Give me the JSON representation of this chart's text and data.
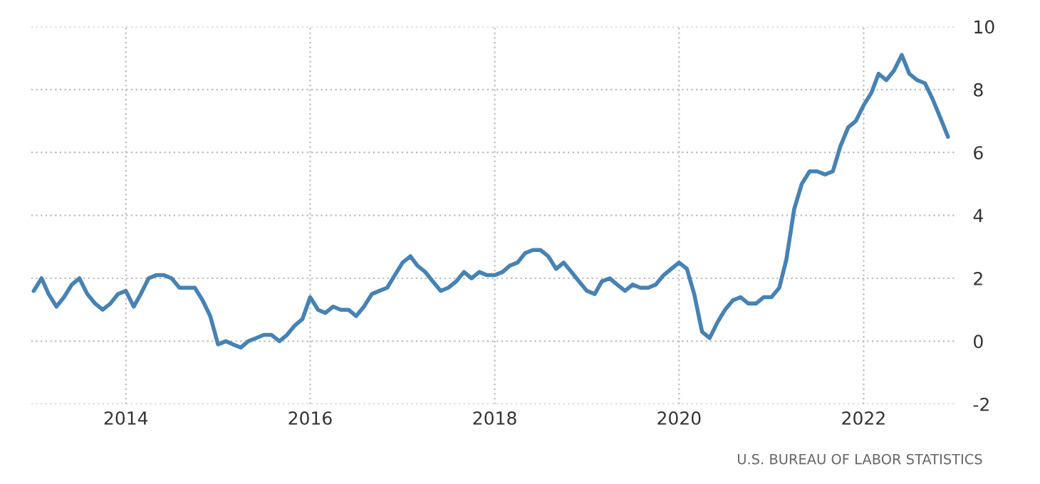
{
  "chart_data": {
    "type": "line",
    "x": [
      "2013-01",
      "2013-02",
      "2013-03",
      "2013-04",
      "2013-05",
      "2013-06",
      "2013-07",
      "2013-08",
      "2013-09",
      "2013-10",
      "2013-11",
      "2013-12",
      "2014-01",
      "2014-02",
      "2014-03",
      "2014-04",
      "2014-05",
      "2014-06",
      "2014-07",
      "2014-08",
      "2014-09",
      "2014-10",
      "2014-11",
      "2014-12",
      "2015-01",
      "2015-02",
      "2015-03",
      "2015-04",
      "2015-05",
      "2015-06",
      "2015-07",
      "2015-08",
      "2015-09",
      "2015-10",
      "2015-11",
      "2015-12",
      "2016-01",
      "2016-02",
      "2016-03",
      "2016-04",
      "2016-05",
      "2016-06",
      "2016-07",
      "2016-08",
      "2016-09",
      "2016-10",
      "2016-11",
      "2016-12",
      "2017-01",
      "2017-02",
      "2017-03",
      "2017-04",
      "2017-05",
      "2017-06",
      "2017-07",
      "2017-08",
      "2017-09",
      "2017-10",
      "2017-11",
      "2017-12",
      "2018-01",
      "2018-02",
      "2018-03",
      "2018-04",
      "2018-05",
      "2018-06",
      "2018-07",
      "2018-08",
      "2018-09",
      "2018-10",
      "2018-11",
      "2018-12",
      "2019-01",
      "2019-02",
      "2019-03",
      "2019-04",
      "2019-05",
      "2019-06",
      "2019-07",
      "2019-08",
      "2019-09",
      "2019-10",
      "2019-11",
      "2019-12",
      "2020-01",
      "2020-02",
      "2020-03",
      "2020-04",
      "2020-05",
      "2020-06",
      "2020-07",
      "2020-08",
      "2020-09",
      "2020-10",
      "2020-11",
      "2020-12",
      "2021-01",
      "2021-02",
      "2021-03",
      "2021-04",
      "2021-05",
      "2021-06",
      "2021-07",
      "2021-08",
      "2021-09",
      "2021-10",
      "2021-11",
      "2021-12",
      "2022-01",
      "2022-02",
      "2022-03",
      "2022-04",
      "2022-05",
      "2022-06",
      "2022-07",
      "2022-08",
      "2022-09",
      "2022-10",
      "2022-11",
      "2022-12"
    ],
    "series": [
      {
        "color": "#4682b4",
        "values": [
          1.6,
          2.0,
          1.5,
          1.1,
          1.4,
          1.8,
          2.0,
          1.5,
          1.2,
          1.0,
          1.2,
          1.5,
          1.6,
          1.1,
          1.5,
          2.0,
          2.1,
          2.1,
          2.0,
          1.7,
          1.7,
          1.7,
          1.3,
          0.8,
          -0.1,
          0.0,
          -0.1,
          -0.2,
          0.0,
          0.1,
          0.2,
          0.2,
          0.0,
          0.2,
          0.5,
          0.7,
          1.4,
          1.0,
          0.9,
          1.1,
          1.0,
          1.0,
          0.8,
          1.1,
          1.5,
          1.6,
          1.7,
          2.1,
          2.5,
          2.7,
          2.4,
          2.2,
          1.9,
          1.6,
          1.7,
          1.9,
          2.2,
          2.0,
          2.2,
          2.1,
          2.1,
          2.2,
          2.4,
          2.5,
          2.8,
          2.9,
          2.9,
          2.7,
          2.3,
          2.5,
          2.2,
          1.9,
          1.6,
          1.5,
          1.9,
          2.0,
          1.8,
          1.6,
          1.8,
          1.7,
          1.7,
          1.8,
          2.1,
          2.3,
          2.5,
          2.3,
          1.5,
          0.3,
          0.1,
          0.6,
          1.0,
          1.3,
          1.4,
          1.2,
          1.2,
          1.4,
          1.4,
          1.7,
          2.6,
          4.2,
          5.0,
          5.4,
          5.4,
          5.3,
          5.4,
          6.2,
          6.8,
          7.0,
          7.5,
          7.9,
          8.5,
          8.3,
          8.6,
          9.1,
          8.5,
          8.3,
          8.2,
          7.7,
          7.1,
          6.5
        ]
      }
    ],
    "xlim": [
      "2012-12-22",
      "2023-01-05"
    ],
    "xticks": [
      {
        "value": "2014-01-01",
        "label": "2014"
      },
      {
        "value": "2016-01-01",
        "label": "2016"
      },
      {
        "value": "2018-01-01",
        "label": "2018"
      },
      {
        "value": "2020-01-01",
        "label": "2020"
      },
      {
        "value": "2022-01-01",
        "label": "2022"
      }
    ],
    "ylim": [
      -2,
      10
    ],
    "yticks": [
      -2,
      0,
      2,
      4,
      6,
      8,
      10
    ],
    "grid": true,
    "line_style": "solid",
    "marker": "none",
    "annotations": [
      "U.S. BUREAU OF LABOR STATISTICS"
    ]
  }
}
